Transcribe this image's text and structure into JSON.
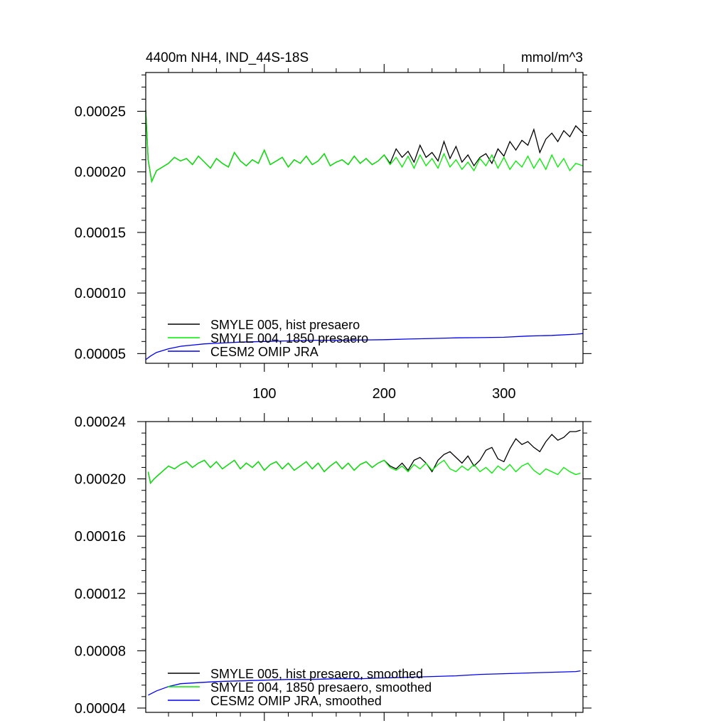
{
  "chart_data": [
    {
      "type": "line",
      "title": "4400m NH4, IND_44S-18S",
      "units": "mmol/m^3",
      "xlim": [
        1,
        366
      ],
      "ylim": [
        4.2e-05,
        0.000282
      ],
      "xticks": [
        100,
        200,
        300
      ],
      "xtick_labels": [
        "100",
        "200",
        "300"
      ],
      "yticks": [
        5e-05,
        0.0001,
        0.00015,
        0.0002,
        0.00025
      ],
      "ytick_labels": [
        "0.00005",
        "0.00010",
        "0.00015",
        "0.00020",
        "0.00025"
      ],
      "grid": false,
      "legend_placement": "bottom-left",
      "series": [
        {
          "name": "SMYLE 005, hist presaero",
          "color": "#000000",
          "x": [
            1,
            3,
            6,
            10,
            15,
            20,
            25,
            30,
            35,
            40,
            45,
            50,
            55,
            60,
            65,
            70,
            75,
            80,
            85,
            90,
            95,
            100,
            105,
            110,
            115,
            120,
            125,
            130,
            135,
            140,
            145,
            150,
            155,
            160,
            165,
            170,
            175,
            180,
            185,
            190,
            195,
            200,
            205,
            210,
            215,
            220,
            225,
            230,
            235,
            240,
            245,
            250,
            255,
            260,
            265,
            270,
            275,
            280,
            285,
            290,
            295,
            300,
            305,
            310,
            315,
            320,
            325,
            330,
            335,
            340,
            345,
            350,
            355,
            360,
            366
          ],
          "y": [
            0.000251,
            0.00021,
            0.000192,
            0.000201,
            0.000204,
            0.000207,
            0.000212,
            0.000209,
            0.000211,
            0.000206,
            0.000213,
            0.000208,
            0.000203,
            0.000211,
            0.000207,
            0.000204,
            0.000216,
            0.000209,
            0.000205,
            0.00021,
            0.000207,
            0.000218,
            0.000206,
            0.000209,
            0.000212,
            0.000204,
            0.00021,
            0.000207,
            0.000213,
            0.000206,
            0.000209,
            0.000215,
            0.000205,
            0.000208,
            0.00021,
            0.000206,
            0.000213,
            0.000207,
            0.000211,
            0.000206,
            0.000209,
            0.000214,
            0.000207,
            0.000219,
            0.000212,
            0.000217,
            0.000208,
            0.000222,
            0.000212,
            0.000216,
            0.000209,
            0.000225,
            0.000211,
            0.000221,
            0.000208,
            0.000214,
            0.000205,
            0.000212,
            0.000215,
            0.000207,
            0.000219,
            0.000213,
            0.000225,
            0.000218,
            0.000226,
            0.000222,
            0.000235,
            0.000216,
            0.000227,
            0.000232,
            0.000225,
            0.000234,
            0.000229,
            0.000238,
            0.000232
          ]
        },
        {
          "name": "SMYLE 004, 1850 presaero",
          "color": "#00ee00",
          "x": [
            1,
            3,
            6,
            10,
            15,
            20,
            25,
            30,
            35,
            40,
            45,
            50,
            55,
            60,
            65,
            70,
            75,
            80,
            85,
            90,
            95,
            100,
            105,
            110,
            115,
            120,
            125,
            130,
            135,
            140,
            145,
            150,
            155,
            160,
            165,
            170,
            175,
            180,
            185,
            190,
            195,
            200,
            205,
            210,
            215,
            220,
            225,
            230,
            235,
            240,
            245,
            250,
            255,
            260,
            265,
            270,
            275,
            280,
            285,
            290,
            295,
            300,
            305,
            310,
            315,
            320,
            325,
            330,
            335,
            340,
            345,
            350,
            355,
            360,
            366
          ],
          "y": [
            0.000251,
            0.00021,
            0.000192,
            0.000201,
            0.000204,
            0.000207,
            0.000212,
            0.000209,
            0.000211,
            0.000206,
            0.000213,
            0.000208,
            0.000203,
            0.000211,
            0.000207,
            0.000204,
            0.000216,
            0.000209,
            0.000205,
            0.00021,
            0.000207,
            0.000218,
            0.000206,
            0.000209,
            0.000212,
            0.000204,
            0.00021,
            0.000207,
            0.000213,
            0.000206,
            0.000209,
            0.000215,
            0.000205,
            0.000208,
            0.00021,
            0.000206,
            0.000213,
            0.000207,
            0.000211,
            0.000206,
            0.000209,
            0.000214,
            0.000206,
            0.000212,
            0.000204,
            0.000213,
            0.000203,
            0.000214,
            0.000205,
            0.000211,
            0.000203,
            0.000215,
            0.000204,
            0.00021,
            0.000202,
            0.000208,
            0.000201,
            0.000211,
            0.000205,
            0.000214,
            0.000203,
            0.000212,
            0.000202,
            0.000209,
            0.000204,
            0.000213,
            0.000203,
            0.000211,
            0.000202,
            0.000214,
            0.000204,
            0.000211,
            0.000201,
            0.000207,
            0.000205
          ]
        },
        {
          "name": "CESM2 OMIP JRA",
          "color": "#0000ee",
          "x": [
            1,
            5,
            10,
            20,
            30,
            40,
            50,
            60,
            80,
            100,
            120,
            140,
            160,
            180,
            200,
            220,
            240,
            260,
            280,
            300,
            320,
            340,
            360,
            366
          ],
          "y": [
            4.5e-05,
            4.8e-05,
            5.1e-05,
            5.4e-05,
            5.6e-05,
            5.7e-05,
            5.8e-05,
            5.85e-05,
            5.95e-05,
            6e-05,
            6.05e-05,
            6.1e-05,
            6.1e-05,
            6.12e-05,
            6.15e-05,
            6.2e-05,
            6.25e-05,
            6.3e-05,
            6.32e-05,
            6.35e-05,
            6.45e-05,
            6.5e-05,
            6.6e-05,
            6.65e-05
          ]
        }
      ]
    },
    {
      "type": "line",
      "xlim": [
        1,
        366
      ],
      "ylim": [
        3.7e-05,
        0.00024
      ],
      "xticks": [
        100,
        200,
        300
      ],
      "yticks": [
        4e-05,
        8e-05,
        0.00012,
        0.00016,
        0.0002,
        0.00024
      ],
      "ytick_labels": [
        "0.00004",
        "0.00008",
        "0.00012",
        "0.00016",
        "0.00020",
        "0.00024"
      ],
      "grid": false,
      "legend_placement": "bottom-left",
      "series": [
        {
          "name": "SMYLE 005, hist presaero, smoothed",
          "color": "#000000",
          "x": [
            3,
            5,
            8,
            12,
            16,
            20,
            25,
            30,
            35,
            40,
            45,
            50,
            55,
            60,
            65,
            70,
            75,
            80,
            85,
            90,
            95,
            100,
            105,
            110,
            115,
            120,
            125,
            130,
            135,
            140,
            145,
            150,
            155,
            160,
            165,
            170,
            175,
            180,
            185,
            190,
            195,
            200,
            205,
            210,
            215,
            220,
            225,
            230,
            235,
            240,
            245,
            250,
            255,
            260,
            265,
            270,
            275,
            280,
            285,
            290,
            295,
            300,
            305,
            310,
            315,
            320,
            325,
            330,
            335,
            340,
            345,
            350,
            355,
            360,
            364
          ],
          "y": [
            0.000205,
            0.000197,
            0.0002,
            0.000203,
            0.000206,
            0.000209,
            0.000207,
            0.00021,
            0.000212,
            0.000208,
            0.000211,
            0.000213,
            0.000208,
            0.000212,
            0.000207,
            0.00021,
            0.000213,
            0.000207,
            0.000211,
            0.000208,
            0.000212,
            0.000206,
            0.00021,
            0.000212,
            0.000207,
            0.000211,
            0.000206,
            0.000209,
            0.000212,
            0.000207,
            0.000211,
            0.000205,
            0.000209,
            0.000212,
            0.000207,
            0.000211,
            0.000206,
            0.00021,
            0.000212,
            0.000208,
            0.000211,
            0.000213,
            0.000209,
            0.000207,
            0.000211,
            0.000206,
            0.000213,
            0.000215,
            0.000211,
            0.000205,
            0.000213,
            0.000217,
            0.000219,
            0.000215,
            0.000211,
            0.000216,
            0.000209,
            0.000213,
            0.00022,
            0.000222,
            0.000214,
            0.000212,
            0.000221,
            0.000228,
            0.000224,
            0.000226,
            0.000222,
            0.000219,
            0.000226,
            0.000231,
            0.000227,
            0.000229,
            0.000233,
            0.000233,
            0.000234
          ]
        },
        {
          "name": "SMYLE 004, 1850 presaero, smoothed",
          "color": "#00ee00",
          "x": [
            3,
            5,
            8,
            12,
            16,
            20,
            25,
            30,
            35,
            40,
            45,
            50,
            55,
            60,
            65,
            70,
            75,
            80,
            85,
            90,
            95,
            100,
            105,
            110,
            115,
            120,
            125,
            130,
            135,
            140,
            145,
            150,
            155,
            160,
            165,
            170,
            175,
            180,
            185,
            190,
            195,
            200,
            205,
            210,
            215,
            220,
            225,
            230,
            235,
            240,
            245,
            250,
            255,
            260,
            265,
            270,
            275,
            280,
            285,
            290,
            295,
            300,
            305,
            310,
            315,
            320,
            325,
            330,
            335,
            340,
            345,
            350,
            355,
            360,
            364
          ],
          "y": [
            0.000205,
            0.000197,
            0.0002,
            0.000203,
            0.000206,
            0.000209,
            0.000207,
            0.00021,
            0.000212,
            0.000208,
            0.000211,
            0.000213,
            0.000208,
            0.000212,
            0.000207,
            0.00021,
            0.000213,
            0.000207,
            0.000211,
            0.000208,
            0.000212,
            0.000206,
            0.00021,
            0.000212,
            0.000207,
            0.000211,
            0.000206,
            0.000209,
            0.000212,
            0.000207,
            0.000211,
            0.000205,
            0.000209,
            0.000212,
            0.000207,
            0.000211,
            0.000206,
            0.00021,
            0.000212,
            0.000208,
            0.000211,
            0.000213,
            0.000208,
            0.000206,
            0.000209,
            0.000205,
            0.00021,
            0.000207,
            0.000211,
            0.000206,
            0.00021,
            0.000213,
            0.000207,
            0.000205,
            0.000209,
            0.000206,
            0.00021,
            0.000205,
            0.000208,
            0.000204,
            0.000209,
            0.000206,
            0.00021,
            0.000205,
            0.000209,
            0.000211,
            0.000206,
            0.000203,
            0.000207,
            0.000205,
            0.000203,
            0.000208,
            0.000205,
            0.000203,
            0.000204
          ]
        },
        {
          "name": "CESM2 OMIP JRA, smoothed",
          "color": "#0000ee",
          "x": [
            3,
            10,
            20,
            30,
            40,
            50,
            60,
            80,
            100,
            120,
            140,
            160,
            180,
            200,
            220,
            240,
            260,
            280,
            300,
            320,
            340,
            360,
            364
          ],
          "y": [
            4.9e-05,
            5.2e-05,
            5.5e-05,
            5.7e-05,
            5.75e-05,
            5.8e-05,
            5.85e-05,
            5.9e-05,
            5.95e-05,
            6e-05,
            6e-05,
            6.05e-05,
            6.05e-05,
            6.1e-05,
            6.15e-05,
            6.2e-05,
            6.25e-05,
            6.35e-05,
            6.4e-05,
            6.45e-05,
            6.5e-05,
            6.55e-05,
            6.6e-05
          ]
        }
      ]
    }
  ]
}
